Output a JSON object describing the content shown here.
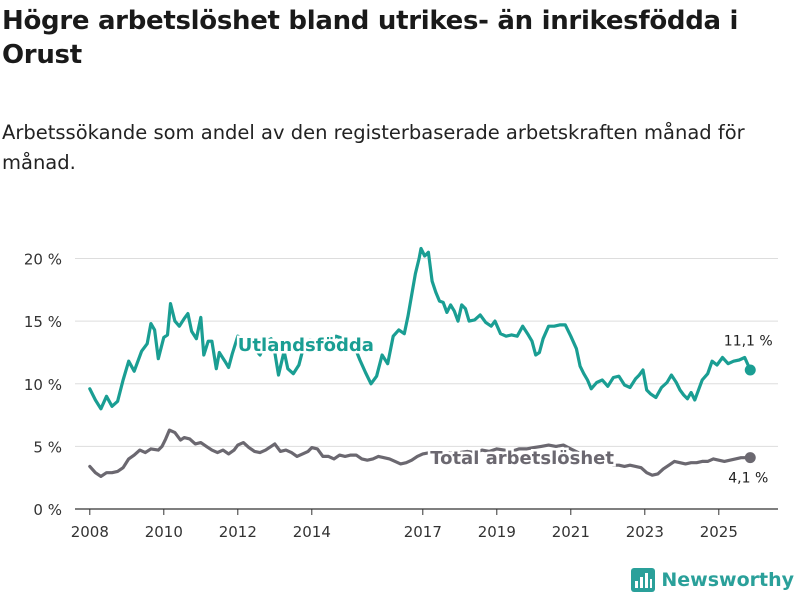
{
  "header": {
    "title": "Högre arbetslöshet bland utrikes- än inrikesfödda i Orust",
    "subtitle": "Arbetssökande som andel av den registerbaserade arbetskraften månad för månad."
  },
  "brand": {
    "name": "Newsworthy",
    "icon": "bar-chart-logo-icon",
    "color": "#2aa09a"
  },
  "chart_data": {
    "type": "line",
    "title": "Högre arbetslöshet bland utrikes- än inrikesfödda i Orust",
    "xlabel": "",
    "ylabel": "",
    "xlim": [
      2007.6,
      2026.6
    ],
    "ylim": [
      0,
      21
    ],
    "grid": true,
    "x_ticks": [
      2008,
      2010,
      2012,
      2014,
      2017,
      2019,
      2021,
      2023,
      2025
    ],
    "x_tick_labels": [
      "2008",
      "2010",
      "2012",
      "2014",
      "2017",
      "2019",
      "2021",
      "2023",
      "2025"
    ],
    "y_ticks": [
      0,
      5,
      10,
      15,
      20
    ],
    "y_tick_labels": [
      "0 %",
      "5 %",
      "10 %",
      "15 %",
      "20 %"
    ],
    "series": [
      {
        "name": "Utlandsfödda",
        "color": "#1a9e93",
        "end_label": "11,1 %",
        "points": [
          [
            2008.0,
            9.6
          ],
          [
            2008.15,
            8.7
          ],
          [
            2008.3,
            8.0
          ],
          [
            2008.45,
            9.0
          ],
          [
            2008.6,
            8.2
          ],
          [
            2008.75,
            8.6
          ],
          [
            2008.9,
            10.3
          ],
          [
            2009.05,
            11.8
          ],
          [
            2009.2,
            11.0
          ],
          [
            2009.4,
            12.6
          ],
          [
            2009.55,
            13.2
          ],
          [
            2009.65,
            14.8
          ],
          [
            2009.75,
            14.3
          ],
          [
            2009.85,
            12.0
          ],
          [
            2010.0,
            13.7
          ],
          [
            2010.1,
            13.9
          ],
          [
            2010.18,
            16.4
          ],
          [
            2010.3,
            15.0
          ],
          [
            2010.42,
            14.6
          ],
          [
            2010.55,
            15.2
          ],
          [
            2010.65,
            15.6
          ],
          [
            2010.75,
            14.2
          ],
          [
            2010.88,
            13.6
          ],
          [
            2011.0,
            15.3
          ],
          [
            2011.08,
            12.3
          ],
          [
            2011.2,
            13.4
          ],
          [
            2011.3,
            13.4
          ],
          [
            2011.42,
            11.2
          ],
          [
            2011.5,
            12.5
          ],
          [
            2011.65,
            11.8
          ],
          [
            2011.75,
            11.3
          ],
          [
            2011.85,
            12.4
          ],
          [
            2012.0,
            13.8
          ],
          [
            2012.15,
            13.6
          ],
          [
            2012.3,
            13.0
          ],
          [
            2012.45,
            12.8
          ],
          [
            2012.6,
            12.3
          ],
          [
            2012.75,
            13.3
          ],
          [
            2012.9,
            13.6
          ],
          [
            2013.0,
            12.5
          ],
          [
            2013.1,
            10.7
          ],
          [
            2013.25,
            12.6
          ],
          [
            2013.35,
            11.2
          ],
          [
            2013.5,
            10.8
          ],
          [
            2013.65,
            11.5
          ],
          [
            2013.8,
            13.2
          ],
          [
            2013.95,
            13.5
          ],
          [
            2014.15,
            13.3
          ],
          [
            2014.35,
            13.1
          ],
          [
            2014.5,
            13.4
          ],
          [
            2014.65,
            13.8
          ],
          [
            2014.85,
            13.6
          ],
          [
            2015.0,
            12.8
          ],
          [
            2015.15,
            13.0
          ],
          [
            2015.3,
            11.9
          ],
          [
            2015.45,
            10.9
          ],
          [
            2015.6,
            10.0
          ],
          [
            2015.75,
            10.6
          ],
          [
            2015.9,
            12.3
          ],
          [
            2016.05,
            11.6
          ],
          [
            2016.2,
            13.8
          ],
          [
            2016.35,
            14.3
          ],
          [
            2016.5,
            14.0
          ],
          [
            2016.6,
            15.4
          ],
          [
            2016.7,
            17.1
          ],
          [
            2016.8,
            18.8
          ],
          [
            2016.9,
            20.0
          ],
          [
            2016.95,
            20.8
          ],
          [
            2017.05,
            20.2
          ],
          [
            2017.15,
            20.5
          ],
          [
            2017.25,
            18.2
          ],
          [
            2017.35,
            17.3
          ],
          [
            2017.45,
            16.6
          ],
          [
            2017.55,
            16.5
          ],
          [
            2017.65,
            15.7
          ],
          [
            2017.75,
            16.3
          ],
          [
            2017.85,
            15.8
          ],
          [
            2017.95,
            15.0
          ],
          [
            2018.05,
            16.3
          ],
          [
            2018.15,
            16.0
          ],
          [
            2018.25,
            15.0
          ],
          [
            2018.4,
            15.1
          ],
          [
            2018.55,
            15.5
          ],
          [
            2018.7,
            14.9
          ],
          [
            2018.85,
            14.6
          ],
          [
            2018.95,
            15.0
          ],
          [
            2019.1,
            14.0
          ],
          [
            2019.25,
            13.8
          ],
          [
            2019.4,
            13.9
          ],
          [
            2019.55,
            13.8
          ],
          [
            2019.7,
            14.6
          ],
          [
            2019.85,
            13.9
          ],
          [
            2019.95,
            13.4
          ],
          [
            2020.05,
            12.3
          ],
          [
            2020.15,
            12.5
          ],
          [
            2020.25,
            13.6
          ],
          [
            2020.4,
            14.6
          ],
          [
            2020.55,
            14.6
          ],
          [
            2020.7,
            14.7
          ],
          [
            2020.85,
            14.7
          ],
          [
            2021.0,
            13.8
          ],
          [
            2021.15,
            12.8
          ],
          [
            2021.25,
            11.4
          ],
          [
            2021.35,
            10.8
          ],
          [
            2021.45,
            10.3
          ],
          [
            2021.55,
            9.6
          ],
          [
            2021.7,
            10.1
          ],
          [
            2021.85,
            10.3
          ],
          [
            2022.0,
            9.8
          ],
          [
            2022.15,
            10.5
          ],
          [
            2022.3,
            10.6
          ],
          [
            2022.45,
            9.9
          ],
          [
            2022.6,
            9.7
          ],
          [
            2022.75,
            10.4
          ],
          [
            2022.85,
            10.7
          ],
          [
            2022.95,
            11.1
          ],
          [
            2023.05,
            9.5
          ],
          [
            2023.15,
            9.2
          ],
          [
            2023.3,
            8.9
          ],
          [
            2023.45,
            9.7
          ],
          [
            2023.6,
            10.1
          ],
          [
            2023.72,
            10.7
          ],
          [
            2023.85,
            10.1
          ],
          [
            2023.95,
            9.5
          ],
          [
            2024.05,
            9.1
          ],
          [
            2024.15,
            8.8
          ],
          [
            2024.25,
            9.3
          ],
          [
            2024.35,
            8.7
          ],
          [
            2024.45,
            9.5
          ],
          [
            2024.55,
            10.3
          ],
          [
            2024.7,
            10.8
          ],
          [
            2024.82,
            11.8
          ],
          [
            2024.95,
            11.5
          ],
          [
            2025.1,
            12.1
          ],
          [
            2025.25,
            11.6
          ],
          [
            2025.4,
            11.8
          ],
          [
            2025.55,
            11.9
          ],
          [
            2025.7,
            12.1
          ],
          [
            2025.85,
            11.1
          ]
        ]
      },
      {
        "name": "Total arbetslöshet",
        "color": "#6b6870",
        "end_label": "4,1 %",
        "points": [
          [
            2008.0,
            3.4
          ],
          [
            2008.15,
            2.9
          ],
          [
            2008.3,
            2.6
          ],
          [
            2008.45,
            2.9
          ],
          [
            2008.6,
            2.9
          ],
          [
            2008.75,
            3.0
          ],
          [
            2008.9,
            3.3
          ],
          [
            2009.05,
            4.0
          ],
          [
            2009.2,
            4.3
          ],
          [
            2009.35,
            4.7
          ],
          [
            2009.5,
            4.5
          ],
          [
            2009.65,
            4.8
          ],
          [
            2009.85,
            4.7
          ],
          [
            2009.95,
            5.0
          ],
          [
            2010.05,
            5.6
          ],
          [
            2010.15,
            6.3
          ],
          [
            2010.3,
            6.1
          ],
          [
            2010.45,
            5.5
          ],
          [
            2010.55,
            5.7
          ],
          [
            2010.7,
            5.6
          ],
          [
            2010.85,
            5.2
          ],
          [
            2011.0,
            5.3
          ],
          [
            2011.15,
            5.0
          ],
          [
            2011.3,
            4.7
          ],
          [
            2011.45,
            4.5
          ],
          [
            2011.6,
            4.7
          ],
          [
            2011.75,
            4.4
          ],
          [
            2011.9,
            4.7
          ],
          [
            2012.0,
            5.1
          ],
          [
            2012.15,
            5.3
          ],
          [
            2012.3,
            4.9
          ],
          [
            2012.45,
            4.6
          ],
          [
            2012.6,
            4.5
          ],
          [
            2012.75,
            4.7
          ],
          [
            2012.9,
            5.0
          ],
          [
            2013.0,
            5.2
          ],
          [
            2013.15,
            4.6
          ],
          [
            2013.3,
            4.7
          ],
          [
            2013.45,
            4.5
          ],
          [
            2013.6,
            4.2
          ],
          [
            2013.75,
            4.4
          ],
          [
            2013.9,
            4.6
          ],
          [
            2014.0,
            4.9
          ],
          [
            2014.15,
            4.8
          ],
          [
            2014.3,
            4.2
          ],
          [
            2014.45,
            4.2
          ],
          [
            2014.6,
            4.0
          ],
          [
            2014.75,
            4.3
          ],
          [
            2014.9,
            4.2
          ],
          [
            2015.05,
            4.3
          ],
          [
            2015.2,
            4.3
          ],
          [
            2015.35,
            4.0
          ],
          [
            2015.5,
            3.9
          ],
          [
            2015.65,
            4.0
          ],
          [
            2015.8,
            4.2
          ],
          [
            2015.95,
            4.1
          ],
          [
            2016.1,
            4.0
          ],
          [
            2016.25,
            3.8
          ],
          [
            2016.4,
            3.6
          ],
          [
            2016.55,
            3.7
          ],
          [
            2016.7,
            3.9
          ],
          [
            2016.85,
            4.2
          ],
          [
            2017.0,
            4.4
          ],
          [
            2017.2,
            4.5
          ],
          [
            2017.4,
            4.2
          ],
          [
            2017.6,
            4.4
          ],
          [
            2017.8,
            4.5
          ],
          [
            2018.0,
            4.5
          ],
          [
            2018.2,
            4.6
          ],
          [
            2018.4,
            4.5
          ],
          [
            2018.6,
            4.7
          ],
          [
            2018.8,
            4.6
          ],
          [
            2019.0,
            4.8
          ],
          [
            2019.2,
            4.7
          ],
          [
            2019.4,
            4.6
          ],
          [
            2019.6,
            4.8
          ],
          [
            2019.8,
            4.8
          ],
          [
            2020.0,
            4.9
          ],
          [
            2020.2,
            5.0
          ],
          [
            2020.4,
            5.1
          ],
          [
            2020.6,
            5.0
          ],
          [
            2020.8,
            5.1
          ],
          [
            2021.0,
            4.8
          ],
          [
            2021.2,
            4.5
          ],
          [
            2021.4,
            4.2
          ],
          [
            2021.6,
            4.0
          ],
          [
            2021.8,
            3.8
          ],
          [
            2022.0,
            3.6
          ],
          [
            2022.15,
            3.5
          ],
          [
            2022.3,
            3.5
          ],
          [
            2022.45,
            3.4
          ],
          [
            2022.6,
            3.5
          ],
          [
            2022.75,
            3.4
          ],
          [
            2022.9,
            3.3
          ],
          [
            2023.05,
            2.9
          ],
          [
            2023.2,
            2.7
          ],
          [
            2023.35,
            2.8
          ],
          [
            2023.5,
            3.2
          ],
          [
            2023.65,
            3.5
          ],
          [
            2023.8,
            3.8
          ],
          [
            2023.95,
            3.7
          ],
          [
            2024.1,
            3.6
          ],
          [
            2024.25,
            3.7
          ],
          [
            2024.4,
            3.7
          ],
          [
            2024.55,
            3.8
          ],
          [
            2024.7,
            3.8
          ],
          [
            2024.85,
            4.0
          ],
          [
            2025.0,
            3.9
          ],
          [
            2025.15,
            3.8
          ],
          [
            2025.3,
            3.9
          ],
          [
            2025.45,
            4.0
          ],
          [
            2025.6,
            4.1
          ],
          [
            2025.75,
            4.1
          ],
          [
            2025.85,
            4.1
          ]
        ]
      }
    ]
  }
}
